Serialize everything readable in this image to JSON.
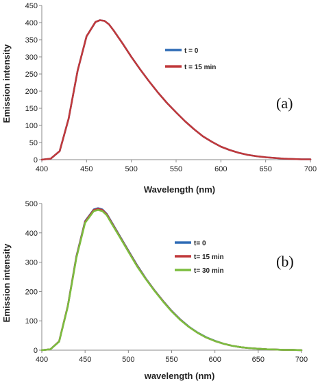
{
  "chart_data": [
    {
      "type": "line",
      "panel_label": "(a)",
      "xlabel": "Wavelength (nm)",
      "ylabel": "Emission intensity",
      "xlim": [
        400,
        700
      ],
      "ylim": [
        0,
        450
      ],
      "xticks": [
        400,
        450,
        500,
        550,
        600,
        650,
        700
      ],
      "yticks": [
        0,
        50,
        100,
        150,
        200,
        250,
        300,
        350,
        400,
        450
      ],
      "grid": false,
      "legend": "right",
      "x": [
        400,
        410,
        420,
        430,
        440,
        450,
        460,
        465,
        470,
        475,
        480,
        490,
        500,
        510,
        520,
        530,
        540,
        550,
        560,
        570,
        580,
        590,
        600,
        610,
        620,
        630,
        640,
        650,
        660,
        670,
        680,
        690,
        700
      ],
      "series": [
        {
          "name": "t = 0",
          "color": "#2e6bb5",
          "values": [
            0,
            3,
            25,
            120,
            260,
            360,
            402,
            407,
            405,
            395,
            378,
            340,
            300,
            263,
            228,
            195,
            165,
            138,
            112,
            89,
            68,
            52,
            38,
            28,
            20,
            14,
            10,
            7,
            5,
            3,
            2,
            1,
            1
          ]
        },
        {
          "name": "t = 15 min",
          "color": "#c0393b",
          "values": [
            0,
            3,
            25,
            120,
            260,
            360,
            402,
            407,
            405,
            395,
            378,
            340,
            300,
            263,
            228,
            195,
            165,
            138,
            112,
            89,
            68,
            52,
            38,
            28,
            20,
            14,
            10,
            7,
            5,
            3,
            2,
            1,
            1
          ]
        }
      ]
    },
    {
      "type": "line",
      "panel_label": "(b)",
      "xlabel": "wavelength (nm)",
      "ylabel": "Emission intensity",
      "xlim": [
        400,
        700
      ],
      "ylim": [
        0,
        500
      ],
      "xticks": [
        400,
        450,
        500,
        550,
        600,
        650,
        700
      ],
      "yticks": [
        0,
        100,
        200,
        300,
        400,
        500
      ],
      "grid": false,
      "legend": "right",
      "x": [
        400,
        410,
        420,
        430,
        440,
        450,
        460,
        465,
        470,
        475,
        480,
        490,
        500,
        510,
        520,
        530,
        540,
        550,
        560,
        570,
        580,
        590,
        600,
        610,
        620,
        630,
        640,
        650,
        660,
        670,
        680,
        690,
        700
      ],
      "series": [
        {
          "name": "t= 0",
          "color": "#2e6bb5",
          "values": [
            0,
            3,
            30,
            150,
            320,
            440,
            480,
            484,
            480,
            465,
            440,
            390,
            340,
            290,
            245,
            205,
            168,
            134,
            105,
            80,
            60,
            44,
            32,
            22,
            15,
            10,
            7,
            5,
            3,
            2,
            1,
            1,
            0
          ]
        },
        {
          "name": "t= 15 min",
          "color": "#c0393b",
          "values": [
            0,
            3,
            30,
            150,
            318,
            438,
            478,
            482,
            478,
            463,
            438,
            388,
            338,
            288,
            244,
            204,
            167,
            133,
            104,
            79,
            59,
            43,
            31,
            22,
            15,
            10,
            7,
            5,
            3,
            2,
            1,
            1,
            0
          ]
        },
        {
          "name": "t= 30 min",
          "color": "#7cbd3f",
          "values": [
            0,
            3,
            29,
            148,
            315,
            434,
            474,
            478,
            474,
            460,
            435,
            386,
            336,
            286,
            243,
            203,
            166,
            132,
            103,
            79,
            59,
            43,
            31,
            22,
            15,
            10,
            7,
            5,
            3,
            2,
            1,
            1,
            0
          ]
        }
      ]
    }
  ]
}
